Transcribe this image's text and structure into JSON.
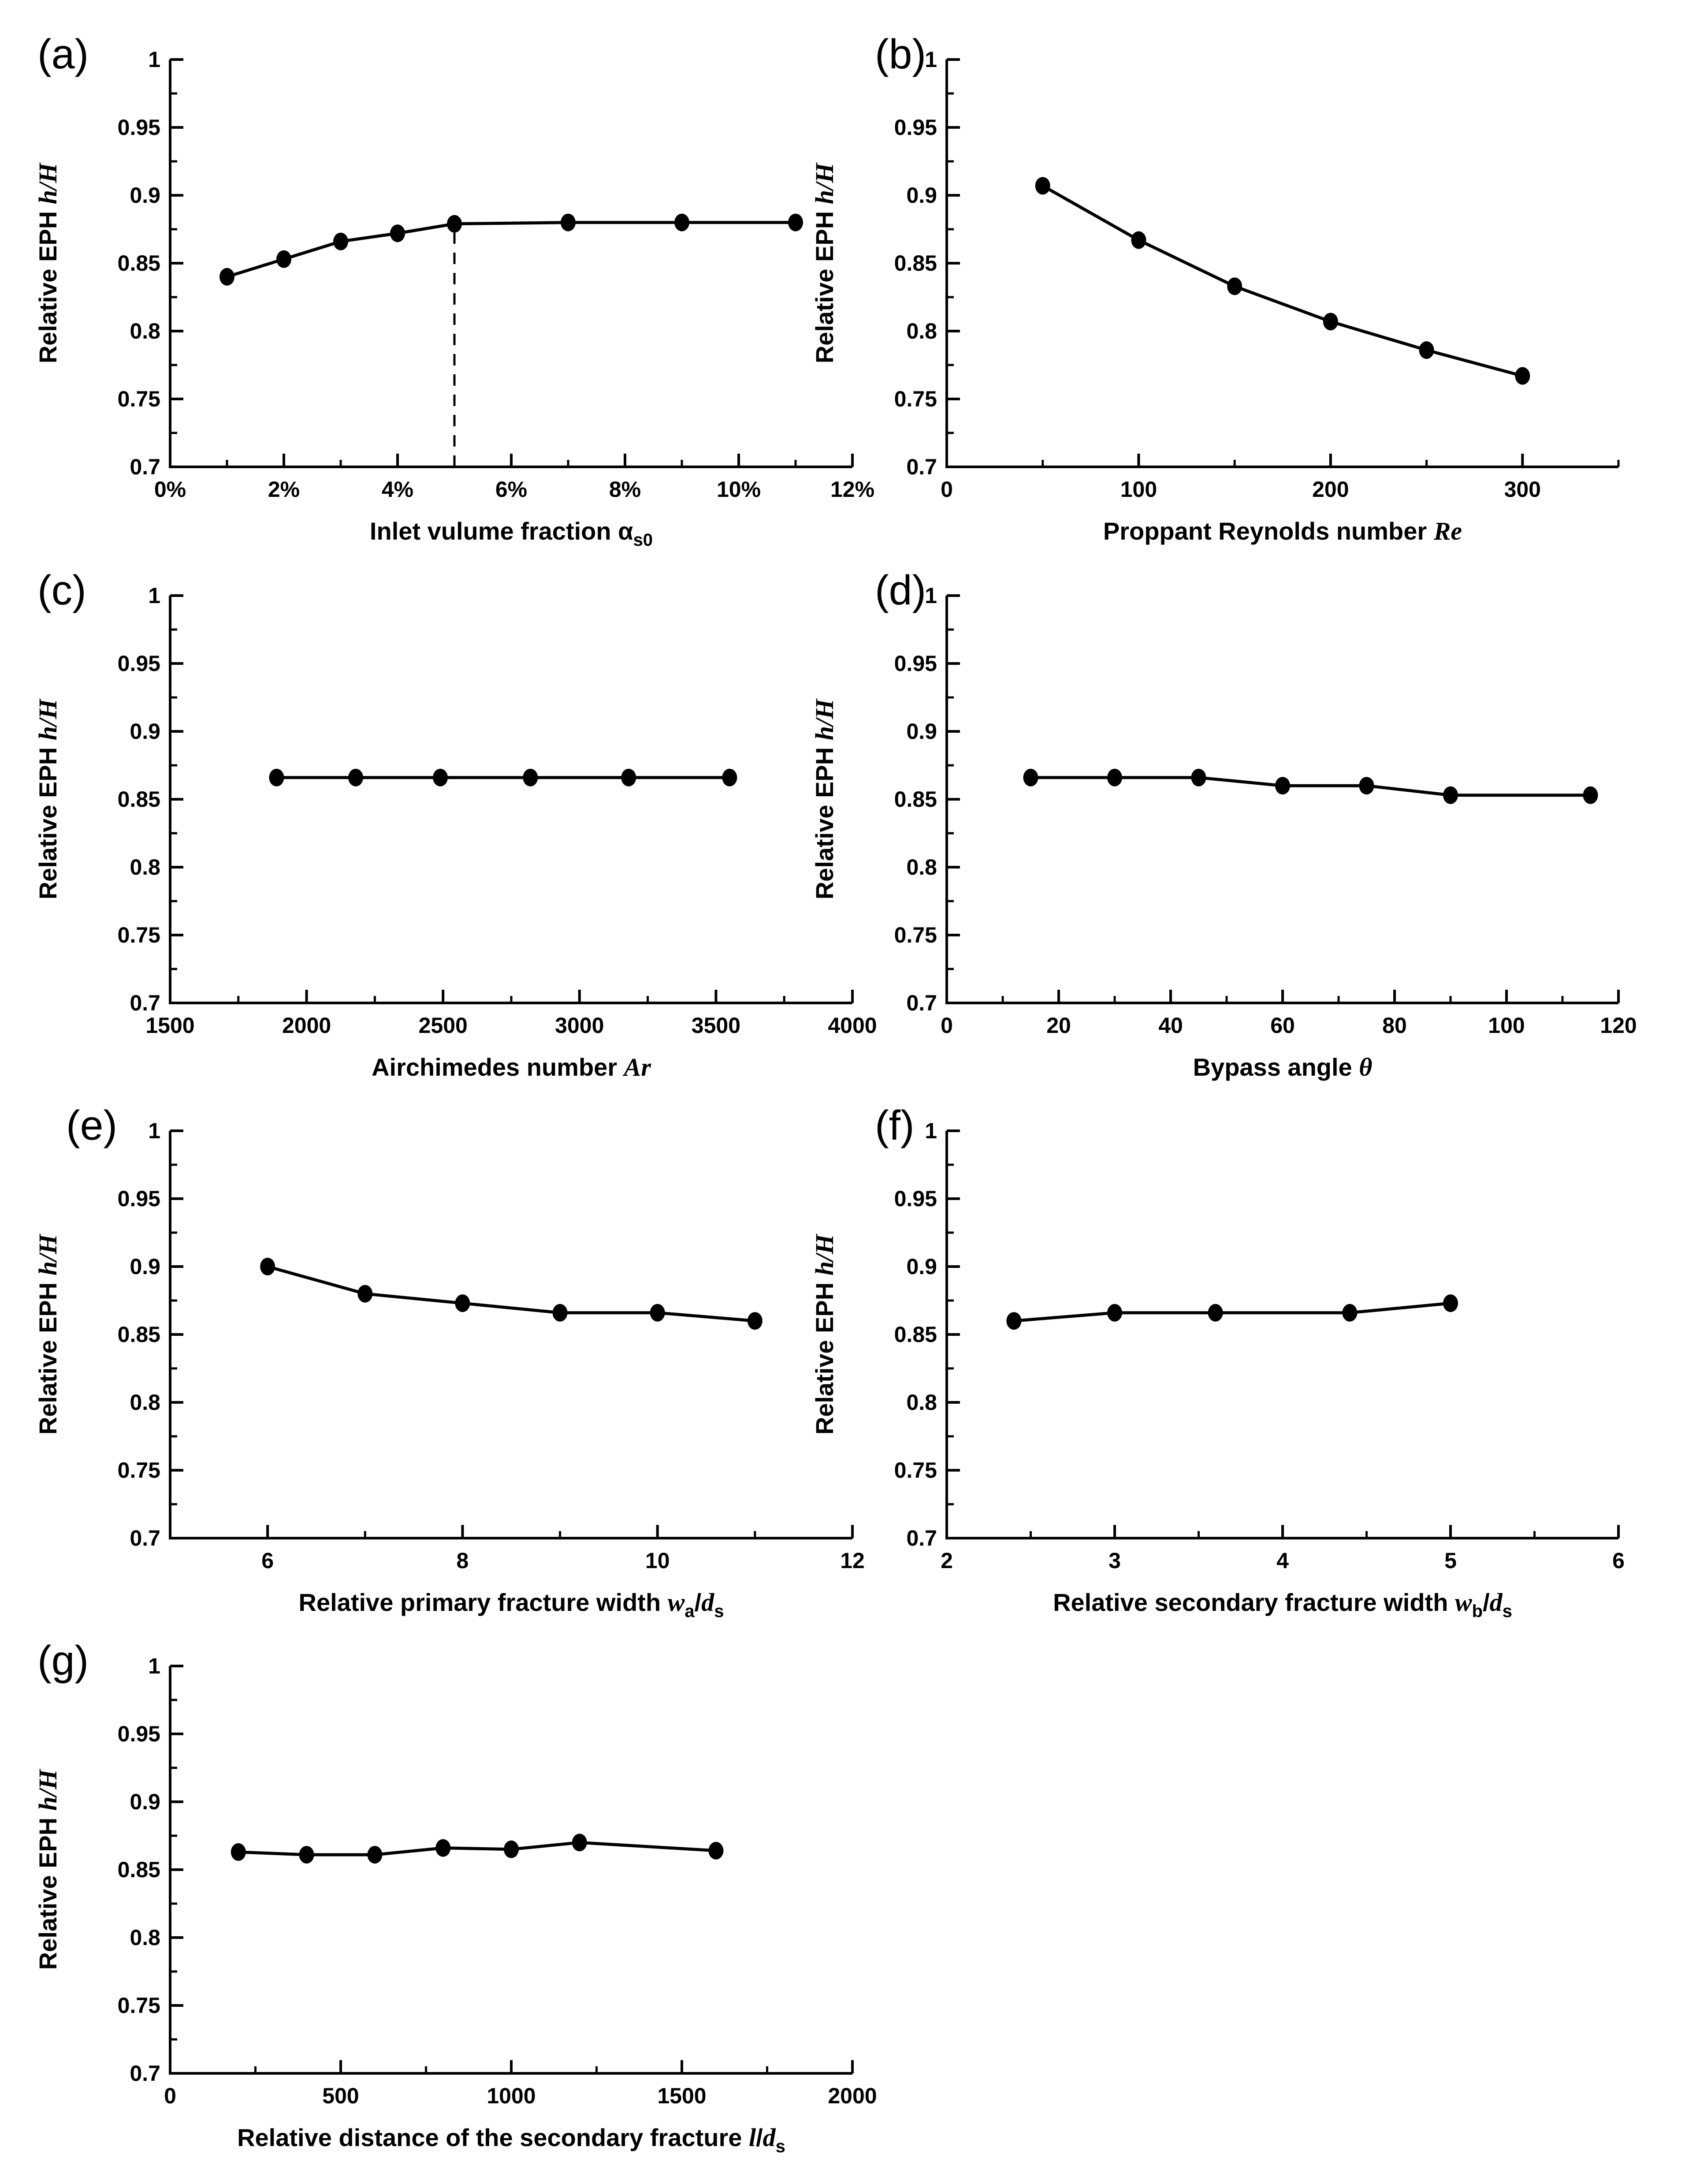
{
  "page": {
    "background": "#ffffff",
    "ink": "#000000",
    "marker_color": "#000000"
  },
  "chart_data": [
    {
      "id": "a",
      "letter": "(a)",
      "type": "line",
      "grid": {
        "row": 0,
        "col": 0
      },
      "x": [
        1,
        2,
        3,
        4,
        5,
        7,
        9,
        11
      ],
      "y": [
        0.84,
        0.853,
        0.866,
        0.872,
        0.879,
        0.88,
        0.88,
        0.88
      ],
      "xlim": [
        0,
        12
      ],
      "ylim": [
        0.7,
        1.0
      ],
      "x_ticks": [
        0,
        2,
        4,
        6,
        8,
        10,
        12
      ],
      "x_tick_labels": [
        "0%",
        "2%",
        "4%",
        "6%",
        "8%",
        "10%",
        "12%"
      ],
      "x_minor": [
        1,
        3,
        5,
        7,
        9,
        11
      ],
      "y_ticks": [
        0.7,
        0.75,
        0.8,
        0.85,
        0.9,
        0.95,
        1.0
      ],
      "y_tick_labels": [
        "0.7",
        "0.75",
        "0.8",
        "0.85",
        "0.9",
        "0.95",
        "1"
      ],
      "y_minor": [
        0.725,
        0.775,
        0.825,
        0.875,
        0.925,
        0.975
      ],
      "xlabel_parts": [
        {
          "s": "p",
          "t": "Inlet vulume fraction "
        },
        {
          "s": "p",
          "t": "α"
        },
        {
          "s": "sub",
          "t": "s0"
        }
      ],
      "ylabel_parts": [
        {
          "s": "p",
          "t": "Relative EPH "
        },
        {
          "s": "m",
          "t": "h/H"
        }
      ],
      "dashed_vline": {
        "x": 5,
        "y0": 0.7,
        "y1": 0.879
      }
    },
    {
      "id": "b",
      "letter": "(b)",
      "type": "line",
      "grid": {
        "row": 0,
        "col": 1
      },
      "x": [
        50,
        100,
        150,
        200,
        250,
        300
      ],
      "y": [
        0.907,
        0.867,
        0.833,
        0.807,
        0.786,
        0.767
      ],
      "xlim": [
        0,
        350
      ],
      "ylim": [
        0.7,
        1.0
      ],
      "x_ticks": [
        0,
        100,
        200,
        300
      ],
      "x_tick_labels": [
        "0",
        "100",
        "200",
        "300"
      ],
      "x_minor": [
        50,
        150,
        250,
        350
      ],
      "y_ticks": [
        0.7,
        0.75,
        0.8,
        0.85,
        0.9,
        0.95,
        1.0
      ],
      "y_tick_labels": [
        "0.7",
        "0.75",
        "0.8",
        "0.85",
        "0.9",
        "0.95",
        "1"
      ],
      "y_minor": [
        0.725,
        0.775,
        0.825,
        0.875,
        0.925,
        0.975
      ],
      "xlabel_parts": [
        {
          "s": "p",
          "t": "Proppant Reynolds number "
        },
        {
          "s": "m",
          "t": "Re"
        }
      ],
      "ylabel_parts": [
        {
          "s": "p",
          "t": "Relative EPH "
        },
        {
          "s": "m",
          "t": "h/H"
        }
      ]
    },
    {
      "id": "c",
      "letter": "(c)",
      "type": "line",
      "grid": {
        "row": 1,
        "col": 0
      },
      "x": [
        1890,
        2180,
        2490,
        2820,
        3180,
        3550
      ],
      "y": [
        0.866,
        0.866,
        0.866,
        0.866,
        0.866,
        0.866
      ],
      "xlim": [
        1500,
        4000
      ],
      "ylim": [
        0.7,
        1.0
      ],
      "x_ticks": [
        1500,
        2000,
        2500,
        3000,
        3500,
        4000
      ],
      "x_tick_labels": [
        "1500",
        "2000",
        "2500",
        "3000",
        "3500",
        "4000"
      ],
      "x_minor": [
        1750,
        2250,
        2750,
        3250,
        3750
      ],
      "y_ticks": [
        0.7,
        0.75,
        0.8,
        0.85,
        0.9,
        0.95,
        1.0
      ],
      "y_tick_labels": [
        "0.7",
        "0.75",
        "0.8",
        "0.85",
        "0.9",
        "0.95",
        "1"
      ],
      "y_minor": [
        0.725,
        0.775,
        0.825,
        0.875,
        0.925,
        0.975
      ],
      "xlabel_parts": [
        {
          "s": "p",
          "t": "Airchimedes number "
        },
        {
          "s": "m",
          "t": "Ar"
        }
      ],
      "ylabel_parts": [
        {
          "s": "p",
          "t": "Relative EPH "
        },
        {
          "s": "m",
          "t": "h/H"
        }
      ]
    },
    {
      "id": "d",
      "letter": "(d)",
      "type": "line",
      "grid": {
        "row": 1,
        "col": 1
      },
      "x": [
        15,
        30,
        45,
        60,
        75,
        90,
        115
      ],
      "y": [
        0.866,
        0.866,
        0.866,
        0.86,
        0.86,
        0.853,
        0.853
      ],
      "xlim": [
        0,
        120
      ],
      "ylim": [
        0.7,
        1.0
      ],
      "x_ticks": [
        0,
        20,
        40,
        60,
        80,
        100,
        120
      ],
      "x_tick_labels": [
        "0",
        "20",
        "40",
        "60",
        "80",
        "100",
        "120"
      ],
      "x_minor": [
        10,
        30,
        50,
        70,
        90,
        110
      ],
      "y_ticks": [
        0.7,
        0.75,
        0.8,
        0.85,
        0.9,
        0.95,
        1.0
      ],
      "y_tick_labels": [
        "0.7",
        "0.75",
        "0.8",
        "0.85",
        "0.9",
        "0.95",
        "1"
      ],
      "y_minor": [
        0.725,
        0.775,
        0.825,
        0.875,
        0.925,
        0.975
      ],
      "xlabel_parts": [
        {
          "s": "p",
          "t": "Bypass angle "
        },
        {
          "s": "m",
          "t": "θ"
        }
      ],
      "ylabel_parts": [
        {
          "s": "p",
          "t": "Relative EPH "
        },
        {
          "s": "m",
          "t": "h/H"
        }
      ]
    },
    {
      "id": "e",
      "letter": "(e)",
      "type": "line",
      "grid": {
        "row": 2,
        "col": 0
      },
      "x": [
        6,
        7,
        8,
        9,
        10,
        11
      ],
      "y": [
        0.9,
        0.88,
        0.873,
        0.866,
        0.866,
        0.86
      ],
      "xlim": [
        5,
        12
      ],
      "ylim": [
        0.7,
        1.0
      ],
      "x_ticks": [
        6,
        8,
        10,
        12
      ],
      "x_tick_labels": [
        "6",
        "8",
        "10",
        "12"
      ],
      "x_minor": [
        7,
        9,
        11
      ],
      "y_ticks": [
        0.7,
        0.75,
        0.8,
        0.85,
        0.9,
        0.95,
        1.0
      ],
      "y_tick_labels": [
        "0.7",
        "0.75",
        "0.8",
        "0.85",
        "0.9",
        "0.95",
        "1"
      ],
      "y_minor": [
        0.725,
        0.775,
        0.825,
        0.875,
        0.925,
        0.975
      ],
      "xlabel_parts": [
        {
          "s": "p",
          "t": "Relative primary fracture width "
        },
        {
          "s": "m",
          "t": "w"
        },
        {
          "s": "sub",
          "t": "a"
        },
        {
          "s": "p",
          "t": "/"
        },
        {
          "s": "m",
          "t": "d"
        },
        {
          "s": "sub",
          "t": "s"
        }
      ],
      "ylabel_parts": [
        {
          "s": "p",
          "t": "Relative EPH "
        },
        {
          "s": "m",
          "t": "h/H"
        }
      ]
    },
    {
      "id": "f",
      "letter": "(f)",
      "type": "line",
      "grid": {
        "row": 2,
        "col": 1
      },
      "x": [
        2.4,
        3.0,
        3.6,
        4.4,
        5.0
      ],
      "y": [
        0.86,
        0.866,
        0.866,
        0.866,
        0.873
      ],
      "xlim": [
        2,
        6
      ],
      "ylim": [
        0.7,
        1.0
      ],
      "x_ticks": [
        2,
        3,
        4,
        5,
        6
      ],
      "x_tick_labels": [
        "2",
        "3",
        "4",
        "5",
        "6"
      ],
      "x_minor": [
        2.5,
        3.5,
        4.5,
        5.5
      ],
      "y_ticks": [
        0.7,
        0.75,
        0.8,
        0.85,
        0.9,
        0.95,
        1.0
      ],
      "y_tick_labels": [
        "0.7",
        "0.75",
        "0.8",
        "0.85",
        "0.9",
        "0.95",
        "1"
      ],
      "y_minor": [
        0.725,
        0.775,
        0.825,
        0.875,
        0.925,
        0.975
      ],
      "xlabel_parts": [
        {
          "s": "p",
          "t": "Relative secondary fracture width "
        },
        {
          "s": "m",
          "t": "w"
        },
        {
          "s": "sub",
          "t": "b"
        },
        {
          "s": "p",
          "t": "/"
        },
        {
          "s": "m",
          "t": "d"
        },
        {
          "s": "sub",
          "t": "s"
        }
      ],
      "ylabel_parts": [
        {
          "s": "p",
          "t": "Relative EPH "
        },
        {
          "s": "m",
          "t": "h/H"
        }
      ]
    },
    {
      "id": "g",
      "letter": "(g)",
      "type": "line",
      "grid": {
        "row": 3,
        "col": 0
      },
      "x": [
        200,
        400,
        600,
        800,
        1000,
        1200,
        1600
      ],
      "y": [
        0.863,
        0.861,
        0.861,
        0.866,
        0.865,
        0.87,
        0.864
      ],
      "xlim": [
        0,
        2000
      ],
      "ylim": [
        0.7,
        1.0
      ],
      "x_ticks": [
        0,
        500,
        1000,
        1500,
        2000
      ],
      "x_tick_labels": [
        "0",
        "500",
        "1000",
        "1500",
        "2000"
      ],
      "x_minor": [
        250,
        750,
        1250,
        1750
      ],
      "y_ticks": [
        0.7,
        0.75,
        0.8,
        0.85,
        0.9,
        0.95,
        1.0
      ],
      "y_tick_labels": [
        "0.7",
        "0.75",
        "0.8",
        "0.85",
        "0.9",
        "0.95",
        "1"
      ],
      "y_minor": [
        0.725,
        0.775,
        0.825,
        0.875,
        0.925,
        0.975
      ],
      "xlabel_parts": [
        {
          "s": "p",
          "t": "Relative distance of the secondary fracture "
        },
        {
          "s": "m",
          "t": "l"
        },
        {
          "s": "p",
          "t": "/"
        },
        {
          "s": "m",
          "t": "d"
        },
        {
          "s": "sub",
          "t": "s"
        }
      ],
      "ylabel_parts": [
        {
          "s": "p",
          "t": "Relative EPH "
        },
        {
          "s": "m",
          "t": "h/H"
        }
      ]
    }
  ]
}
